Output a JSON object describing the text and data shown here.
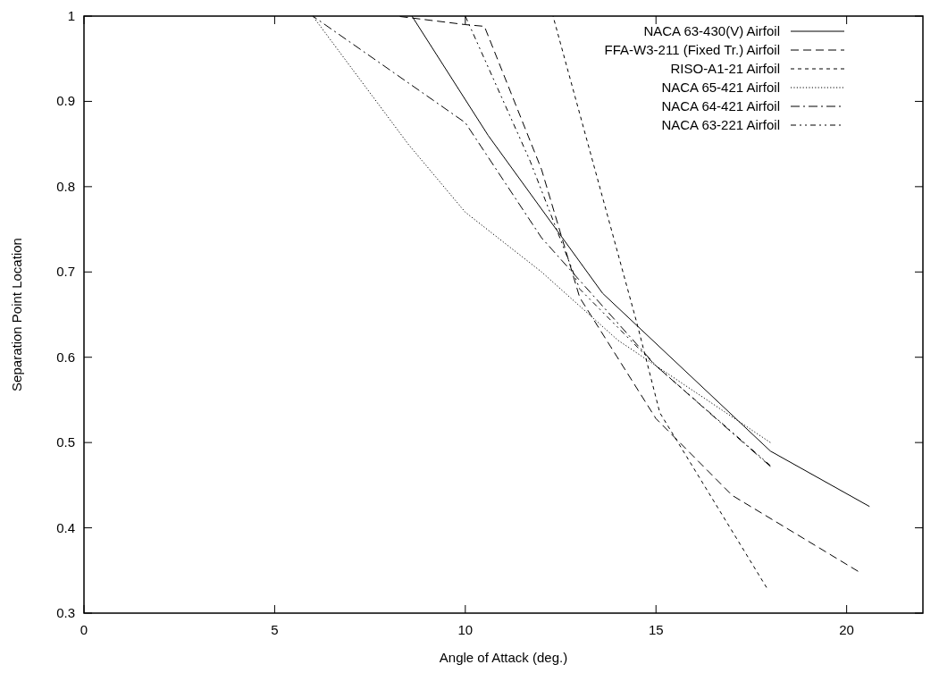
{
  "chart_data": {
    "type": "line",
    "xlabel": "Angle of Attack (deg.)",
    "ylabel": "Separation Point Location",
    "xlim": [
      0,
      22
    ],
    "xticks": [
      0,
      5,
      10,
      15,
      20
    ],
    "ylim": [
      0.3,
      1
    ],
    "yticks": [
      0.3,
      0.4,
      0.5,
      0.6,
      0.7,
      0.8,
      0.9,
      1
    ],
    "legend": "top right",
    "grid": false,
    "series": [
      {
        "name": "NACA 63-430(V) Airfoil",
        "color": "#000000",
        "line_style": "solid",
        "x": [
          8.6,
          10.6,
          13.6,
          18,
          20.6
        ],
        "values": [
          1,
          0.86,
          0.675,
          0.49,
          0.425
        ]
      },
      {
        "name": "FFA-W3-211 (Fixed Tr.) Airfoil",
        "color": "#000000",
        "line_style": "dashed",
        "x": [
          8.2,
          10,
          10.5,
          12,
          13,
          15,
          17,
          20.3
        ],
        "values": [
          1,
          0.99,
          0.988,
          0.82,
          0.67,
          0.528,
          0.438,
          0.349
        ]
      },
      {
        "name": "RISO-A1-21 Airfoil",
        "color": "#000000",
        "line_style": "shortdash",
        "x": [
          12.3,
          14.5,
          15.1,
          17.9
        ],
        "values": [
          1,
          0.64,
          0.535,
          0.33
        ]
      },
      {
        "name": "NACA 65-421 Airfoil",
        "color": "#000000",
        "line_style": "dotted",
        "x": [
          6,
          8.5,
          10,
          12,
          14,
          15,
          18
        ],
        "values": [
          1,
          0.85,
          0.77,
          0.7,
          0.62,
          0.59,
          0.5
        ]
      },
      {
        "name": "NACA 64-421 Airfoil",
        "color": "#000000",
        "line_style": "dashdot",
        "x": [
          6,
          10,
          12,
          15,
          18
        ],
        "values": [
          1,
          0.875,
          0.74,
          0.59,
          0.472
        ]
      },
      {
        "name": "NACA 63-221 Airfoil",
        "color": "#000000",
        "line_style": "dashdotdot",
        "x": [
          10,
          11.7,
          13,
          15,
          18
        ],
        "values": [
          1,
          0.83,
          0.68,
          0.59,
          0.473
        ]
      }
    ]
  }
}
